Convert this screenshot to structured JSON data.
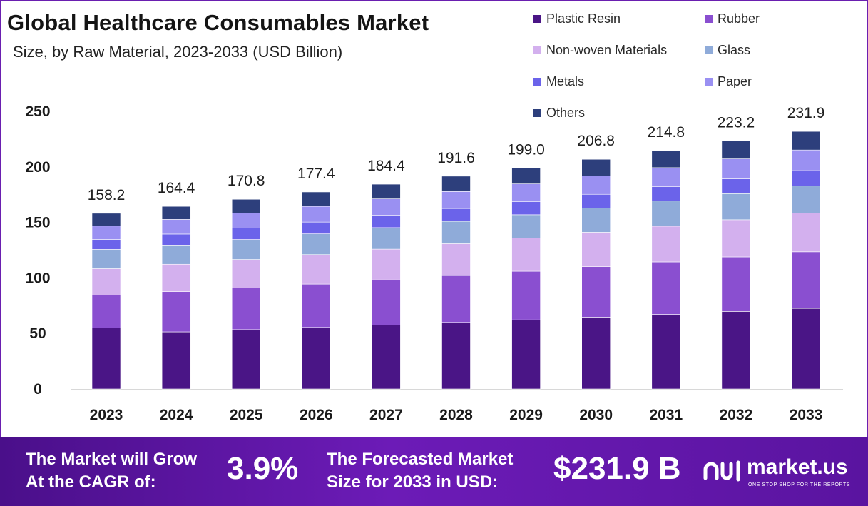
{
  "title": "Global Healthcare Consumables Market",
  "subtitle": "Size, by Raw Material, 2023-2033 (USD Billion)",
  "legend": [
    {
      "label": "Plastic Resin",
      "color": "#4a1586"
    },
    {
      "label": "Rubber",
      "color": "#8a4fd0"
    },
    {
      "label": "Non-woven Materials",
      "color": "#d3b0ee"
    },
    {
      "label": "Glass",
      "color": "#8fabd9"
    },
    {
      "label": "Metals",
      "color": "#6b63ea"
    },
    {
      "label": "Paper",
      "color": "#9a90f2"
    },
    {
      "label": "Others",
      "color": "#2d3f7c"
    }
  ],
  "chart_data": {
    "type": "bar",
    "stacked": true,
    "title": "Global Healthcare Consumables Market",
    "subtitle": "Size, by Raw Material, 2023-2033 (USD Billion)",
    "categories": [
      "2023",
      "2024",
      "2025",
      "2026",
      "2027",
      "2028",
      "2029",
      "2030",
      "2031",
      "2032",
      "2033"
    ],
    "ylim": [
      0,
      250
    ],
    "yticks": [
      "0",
      "50",
      "100",
      "150",
      "200",
      "250"
    ],
    "totals": [
      "158.2",
      "164.4",
      "170.8",
      "177.4",
      "184.4",
      "191.6",
      "199.0",
      "206.8",
      "214.8",
      "223.2",
      "231.9"
    ],
    "series": [
      {
        "name": "Plastic Resin",
        "color": "#4a1586",
        "values": [
          54.9,
          51.4,
          53.4,
          55.4,
          57.6,
          59.9,
          62.2,
          64.6,
          67.1,
          69.8,
          72.5
        ]
      },
      {
        "name": "Rubber",
        "color": "#8a4fd0",
        "values": [
          29.7,
          36.2,
          37.6,
          39.0,
          40.6,
          42.2,
          43.8,
          45.5,
          47.3,
          49.1,
          51.0
        ]
      },
      {
        "name": "Non-woven Materials",
        "color": "#d3b0ee",
        "values": [
          23.7,
          24.7,
          25.6,
          26.6,
          27.7,
          28.7,
          29.9,
          31.0,
          32.2,
          33.5,
          34.8
        ]
      },
      {
        "name": "Glass",
        "color": "#8fabd9",
        "values": [
          17.4,
          17.3,
          18.0,
          18.7,
          19.4,
          20.2,
          21.0,
          21.8,
          22.6,
          23.5,
          24.4
        ]
      },
      {
        "name": "Metals",
        "color": "#6b63ea",
        "values": [
          9.0,
          9.9,
          10.2,
          10.6,
          11.1,
          11.5,
          11.9,
          12.4,
          12.9,
          13.4,
          13.9
        ]
      },
      {
        "name": "Paper",
        "color": "#9a90f2",
        "values": [
          12.0,
          13.2,
          13.7,
          14.2,
          14.8,
          15.3,
          15.9,
          16.5,
          17.2,
          17.9,
          18.6
        ]
      },
      {
        "name": "Others",
        "color": "#2d3f7c",
        "values": [
          11.5,
          11.7,
          12.3,
          12.9,
          13.2,
          13.8,
          14.3,
          15.0,
          15.5,
          16.0,
          16.7
        ]
      }
    ]
  },
  "footer": {
    "cagr_label_1": "The Market will Grow",
    "cagr_label_2": "At the CAGR of:",
    "cagr_value": "3.9%",
    "forecast_label_1": "The Forecasted Market",
    "forecast_label_2": "Size for 2033 in USD:",
    "forecast_value": "$231.9 B",
    "brand_name": "market.us",
    "brand_tagline": "ONE STOP SHOP FOR THE REPORTS"
  }
}
